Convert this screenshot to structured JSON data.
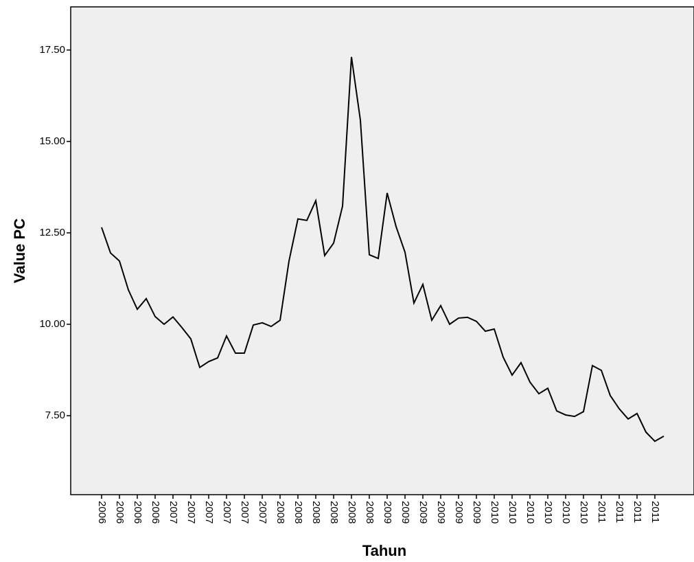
{
  "chart_data": {
    "type": "line",
    "y_label": "Value PC",
    "x_label": "Tahun",
    "categories": [
      "2006",
      null,
      "2006",
      null,
      "2006",
      null,
      "2006",
      null,
      "2007",
      null,
      "2007",
      null,
      "2007",
      null,
      "2007",
      null,
      "2007",
      null,
      "2007",
      null,
      "2008",
      null,
      "2008",
      null,
      "2008",
      null,
      "2008",
      null,
      "2008",
      null,
      "2008",
      null,
      "2009",
      null,
      "2009",
      null,
      "2009",
      null,
      "2009",
      null,
      "2009",
      null,
      "2009",
      null,
      "2010",
      null,
      "2010",
      null,
      "2010",
      null,
      "2010",
      null,
      "2010",
      null,
      "2010",
      null,
      "2011",
      null,
      "2011",
      null,
      "2011",
      null,
      "2011",
      null
    ],
    "values": [
      12.65,
      11.95,
      11.73,
      10.94,
      10.41,
      10.7,
      10.21,
      10.0,
      10.2,
      9.91,
      9.6,
      8.82,
      8.98,
      9.08,
      9.68,
      9.21,
      9.21,
      9.98,
      10.04,
      9.94,
      10.11,
      11.73,
      12.88,
      12.84,
      13.38,
      11.88,
      12.22,
      13.23,
      17.31,
      15.58,
      11.9,
      11.8,
      13.59,
      12.67,
      11.97,
      10.58,
      11.09,
      10.11,
      10.51,
      10.0,
      10.17,
      10.19,
      10.08,
      9.81,
      9.87,
      9.1,
      8.61,
      8.95,
      8.42,
      8.1,
      8.25,
      7.63,
      7.52,
      7.48,
      7.61,
      8.87,
      8.74,
      8.05,
      7.69,
      7.41,
      7.56,
      7.05,
      6.8,
      6.94
    ],
    "color": "#000000",
    "ylim": [
      5.34,
      18.68
    ],
    "yticks": [
      {
        "value": 7.5,
        "label": "7.50"
      },
      {
        "value": 10,
        "label": "10.00"
      },
      {
        "value": 12.5,
        "label": "12.50"
      },
      {
        "value": 15,
        "label": "15.00"
      },
      {
        "value": 17.5,
        "label": "17.50"
      }
    ],
    "grid": false
  }
}
